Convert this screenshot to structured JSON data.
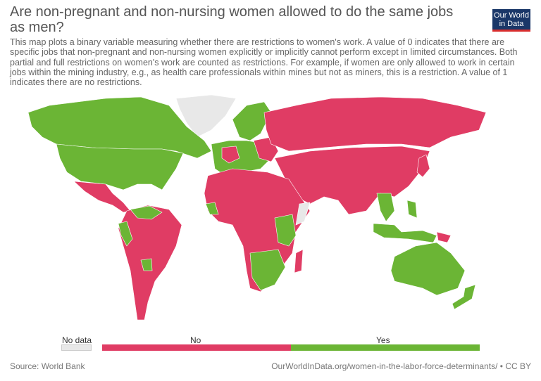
{
  "title": "Are non-pregnant and non-nursing women allowed to do the same jobs as men?",
  "subtitle": "This map plots a binary variable measuring whether there are restrictions to women's work. A value of 0 indicates that there are specific jobs that non-pregnant and non-nursing women explicitly or implicitly cannot perform except in limited circumstances. Both partial and full restrictions on women's work are counted as restrictions. For example, if women are only allowed to work in certain jobs within the mining industry, e.g., as health care professionals within mines but not as miners, this is a restriction. A value of 1 indicates there are no restrictions.",
  "logo": {
    "line1": "Our World",
    "line2": "in Data"
  },
  "colors": {
    "no": "#e03c64",
    "yes": "#6bb535",
    "no_data": "#e8e8e8"
  },
  "legend": {
    "no_data": "No data",
    "no": "No",
    "yes": "Yes"
  },
  "footer": {
    "source": "Source: World Bank",
    "url": "OurWorldInData.org/women-in-the-labor-force-determinants/ • CC BY"
  }
}
